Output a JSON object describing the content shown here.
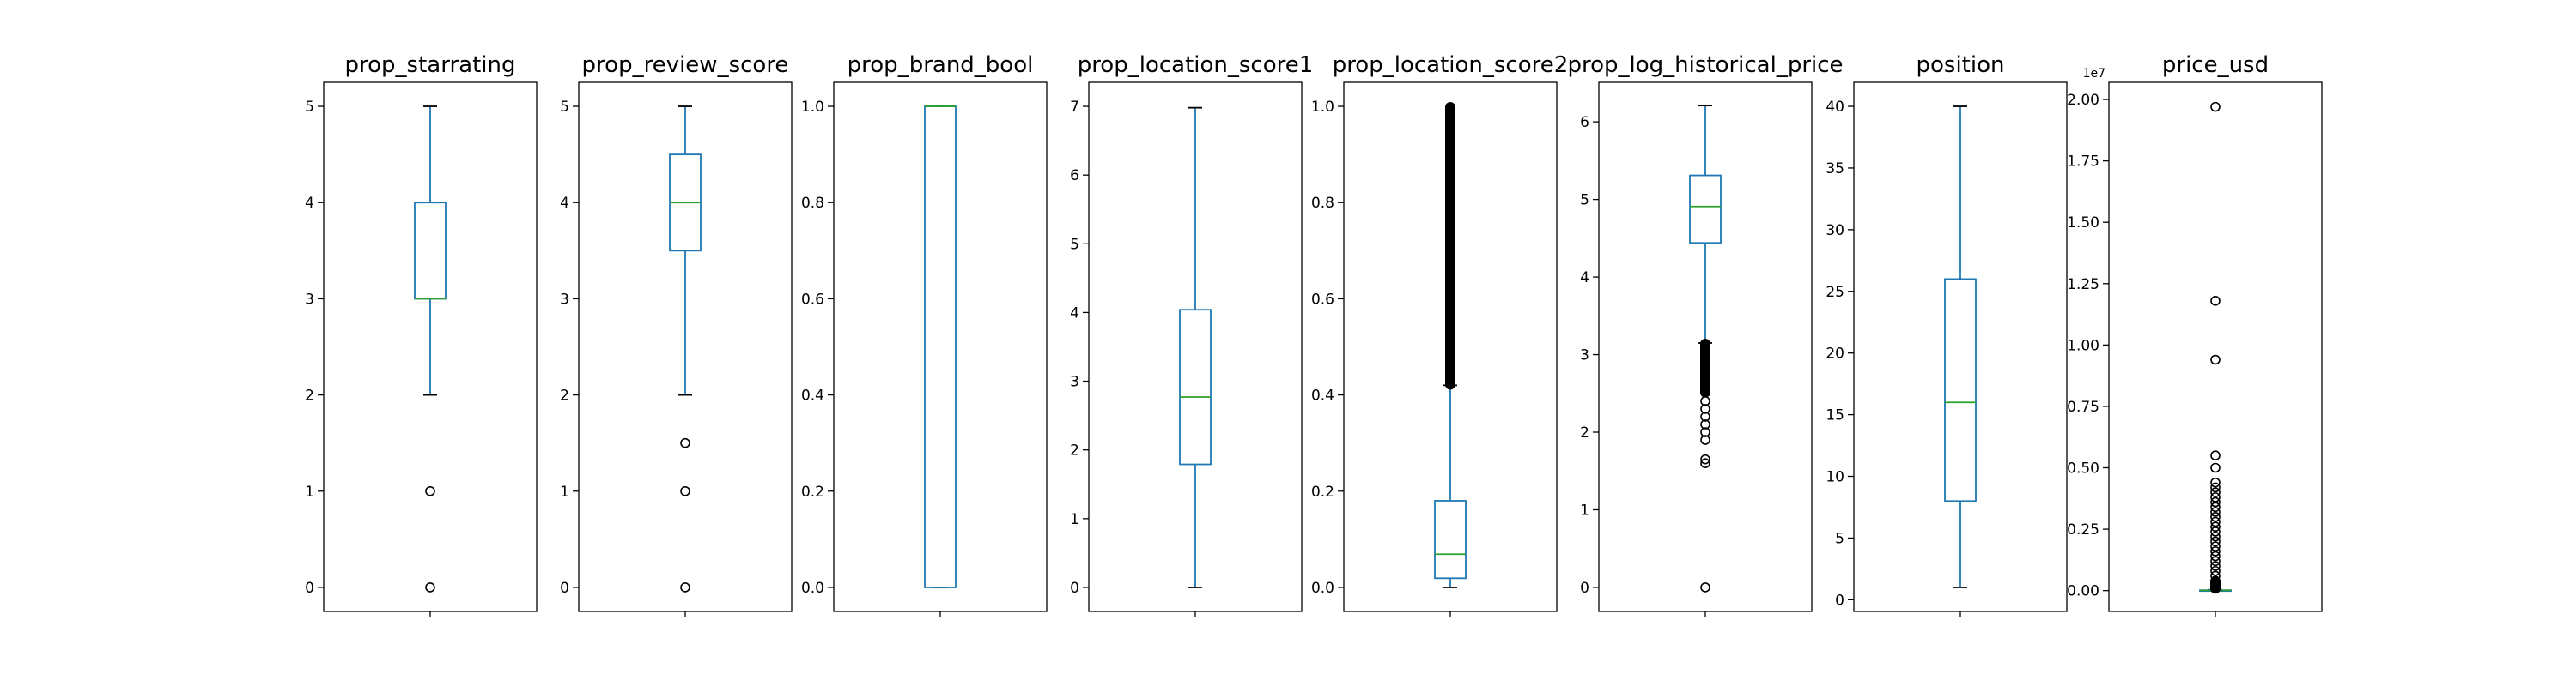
{
  "chart_data": [
    {
      "type": "box",
      "title": "prop_starrating",
      "ylim": [
        -0.25,
        5.25
      ],
      "yticks": [
        0,
        1,
        2,
        3,
        4,
        5
      ],
      "ytick_labels": [
        "0",
        "1",
        "2",
        "3",
        "4",
        "5"
      ],
      "whisker_low": 2,
      "q1": 3,
      "median": 3,
      "q3": 4,
      "whisker_high": 5,
      "fliers": [
        1,
        0
      ]
    },
    {
      "type": "box",
      "title": "prop_review_score",
      "ylim": [
        -0.25,
        5.25
      ],
      "yticks": [
        0,
        1,
        2,
        3,
        4,
        5
      ],
      "ytick_labels": [
        "0",
        "1",
        "2",
        "3",
        "4",
        "5"
      ],
      "whisker_low": 2,
      "q1": 3.5,
      "median": 4,
      "q3": 4.5,
      "whisker_high": 5,
      "fliers": [
        1.5,
        1,
        0
      ]
    },
    {
      "type": "box",
      "title": "prop_brand_bool",
      "ylim": [
        -0.05,
        1.05
      ],
      "yticks": [
        0,
        0.2,
        0.4,
        0.6,
        0.8,
        1.0
      ],
      "ytick_labels": [
        "0.0",
        "0.2",
        "0.4",
        "0.6",
        "0.8",
        "1.0"
      ],
      "whisker_low": 0,
      "q1": 0,
      "median": 1,
      "q3": 1,
      "whisker_high": 1,
      "fliers": []
    },
    {
      "type": "box",
      "title": "prop_location_score1",
      "ylim": [
        -0.35,
        7.35
      ],
      "yticks": [
        0,
        1,
        2,
        3,
        4,
        5,
        6,
        7
      ],
      "ytick_labels": [
        "0",
        "1",
        "2",
        "3",
        "4",
        "5",
        "6",
        "7"
      ],
      "whisker_low": 0,
      "q1": 1.79,
      "median": 2.77,
      "q3": 4.04,
      "whisker_high": 6.98,
      "fliers": []
    },
    {
      "type": "box",
      "title": "prop_location_score2",
      "ylim": [
        -0.05,
        1.05
      ],
      "yticks": [
        0,
        0.2,
        0.4,
        0.6,
        0.8,
        1.0
      ],
      "ytick_labels": [
        "0.0",
        "0.2",
        "0.4",
        "0.6",
        "0.8",
        "1.0"
      ],
      "whisker_low": 0,
      "q1": 0.019,
      "median": 0.069,
      "q3": 0.18,
      "whisker_high": 0.42,
      "fliers": [],
      "flier_range": [
        0.42,
        1.0
      ]
    },
    {
      "type": "box",
      "title": "prop_log_historical_price",
      "ylim": [
        -0.31,
        6.51
      ],
      "yticks": [
        0,
        1,
        2,
        3,
        4,
        5,
        6
      ],
      "ytick_labels": [
        "0",
        "1",
        "2",
        "3",
        "4",
        "5",
        "6"
      ],
      "whisker_low": 3.15,
      "q1": 4.44,
      "median": 4.91,
      "q3": 5.31,
      "whisker_high": 6.21,
      "fliers": [
        2.4,
        2.3,
        2.2,
        2.1,
        2.0,
        1.9,
        1.65,
        1.6,
        0
      ],
      "flier_range": [
        2.5,
        3.15
      ]
    },
    {
      "type": "box",
      "title": "position",
      "ylim": [
        -0.95,
        41.95
      ],
      "yticks": [
        0,
        5,
        10,
        15,
        20,
        25,
        30,
        35,
        40
      ],
      "ytick_labels": [
        "0",
        "5",
        "10",
        "15",
        "20",
        "25",
        "30",
        "35",
        "40"
      ],
      "whisker_low": 1,
      "q1": 8,
      "median": 16,
      "q3": 26,
      "whisker_high": 40,
      "fliers": []
    },
    {
      "type": "box",
      "title": "price_usd",
      "offset_label": "1e7",
      "ylim": [
        -0.085,
        2.07
      ],
      "yticks": [
        0,
        0.25,
        0.5,
        0.75,
        1.0,
        1.25,
        1.5,
        1.75,
        2.0
      ],
      "ytick_labels": [
        "0.00",
        "0.25",
        "0.50",
        "0.75",
        "1.00",
        "1.25",
        "1.50",
        "1.75",
        "2.00"
      ],
      "whisker_low": 0,
      "q1": 0.0006,
      "median": 0.0011,
      "q3": 0.0017,
      "whisker_high": 0.003,
      "fliers": [
        1.97,
        1.18,
        0.94,
        0.55,
        0.5,
        0.44,
        0.42,
        0.4,
        0.38,
        0.36,
        0.34,
        0.32,
        0.3,
        0.28,
        0.26,
        0.24,
        0.22,
        0.2,
        0.18,
        0.16,
        0.14,
        0.12,
        0.1,
        0.08,
        0.06,
        0.04
      ],
      "flier_range": [
        0.005,
        0.04
      ]
    }
  ]
}
